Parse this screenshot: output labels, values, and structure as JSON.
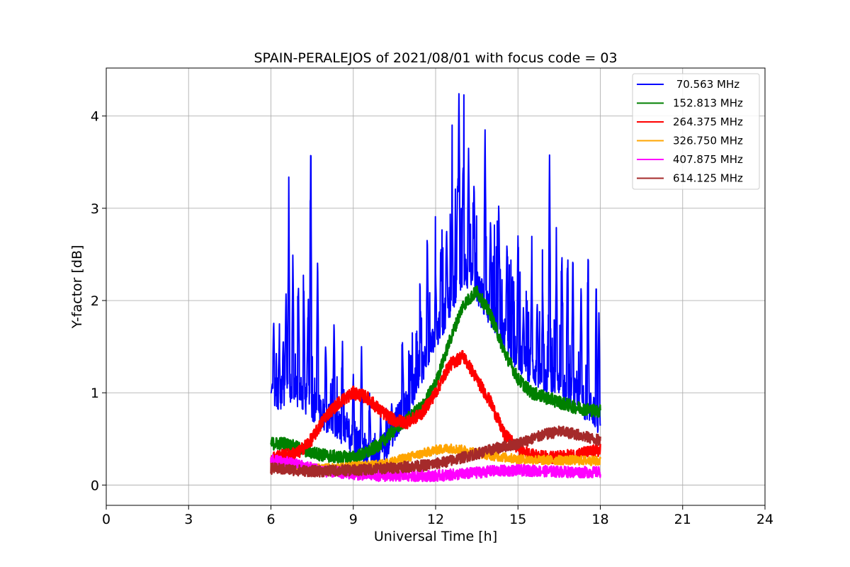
{
  "chart_data": {
    "type": "line",
    "title": "SPAIN-PERALEJOS of 2021/08/01 with focus code = 03",
    "xlabel": "Universal Time [h]",
    "ylabel": "Y-factor [dB]",
    "xlim": [
      0,
      24
    ],
    "ylim": [
      -0.22,
      4.52
    ],
    "xticks": [
      0,
      3,
      6,
      9,
      12,
      15,
      18,
      21,
      24
    ],
    "yticks": [
      0,
      1,
      2,
      3,
      4
    ],
    "grid": true,
    "legend_position": "top-right",
    "series": [
      {
        "name": " 70.563 MHz",
        "color": "#0000ff",
        "x": [
          6.0,
          6.2,
          6.4,
          6.6,
          6.8,
          7.0,
          7.2,
          7.4,
          7.6,
          7.8,
          8.0,
          8.2,
          8.4,
          8.6,
          8.8,
          9.0,
          9.2,
          9.4,
          9.6,
          9.8,
          10.0,
          10.2,
          10.4,
          10.6,
          10.8,
          11.0,
          11.2,
          11.4,
          11.6,
          11.8,
          12.0,
          12.2,
          12.4,
          12.6,
          12.8,
          13.0,
          13.2,
          13.4,
          13.6,
          13.8,
          14.0,
          14.2,
          14.4,
          14.6,
          14.8,
          15.0,
          15.2,
          15.4,
          15.6,
          15.8,
          16.0,
          16.2,
          16.4,
          16.6,
          16.8,
          17.0,
          17.2,
          17.4,
          17.6,
          17.8,
          18.0
        ],
        "y": [
          0.95,
          1.0,
          1.0,
          1.1,
          1.0,
          1.0,
          0.95,
          0.9,
          0.85,
          0.8,
          0.75,
          0.7,
          0.65,
          0.6,
          0.55,
          0.5,
          0.45,
          0.4,
          0.35,
          0.3,
          0.35,
          0.45,
          0.55,
          0.7,
          0.8,
          0.9,
          1.05,
          1.2,
          1.35,
          1.5,
          1.6,
          1.75,
          1.9,
          2.05,
          2.2,
          2.35,
          2.3,
          2.2,
          2.1,
          2.0,
          1.9,
          1.8,
          1.7,
          1.6,
          1.5,
          1.4,
          1.35,
          1.3,
          1.25,
          1.2,
          1.15,
          1.1,
          1.1,
          1.05,
          1.0,
          1.0,
          0.95,
          0.9,
          0.85,
          0.8,
          0.7
        ],
        "peaks": [
          [
            6.05,
            1.1
          ],
          [
            6.1,
            1.8
          ],
          [
            6.3,
            1.5
          ],
          [
            6.45,
            1.6
          ],
          [
            6.55,
            2.1
          ],
          [
            6.65,
            3.0
          ],
          [
            6.8,
            2.5
          ],
          [
            7.0,
            2.2
          ],
          [
            7.2,
            2.1
          ],
          [
            7.35,
            1.9
          ],
          [
            7.45,
            3.65
          ],
          [
            7.7,
            2.5
          ],
          [
            8.0,
            1.5
          ],
          [
            8.3,
            1.8
          ],
          [
            8.6,
            1.4
          ],
          [
            9.0,
            1.2
          ],
          [
            9.3,
            1.5
          ],
          [
            9.6,
            0.9
          ],
          [
            10.0,
            0.7
          ],
          [
            10.4,
            0.9
          ],
          [
            10.8,
            1.4
          ],
          [
            11.1,
            1.3
          ],
          [
            11.45,
            1.9
          ],
          [
            11.7,
            2.6
          ],
          [
            12.0,
            2.3
          ],
          [
            12.2,
            2.6
          ],
          [
            12.4,
            2.8
          ],
          [
            12.6,
            3.1
          ],
          [
            12.8,
            3.3
          ],
          [
            12.85,
            4.3
          ],
          [
            13.0,
            3.5
          ],
          [
            13.2,
            3.65
          ],
          [
            13.4,
            3.3
          ],
          [
            13.8,
            3.85
          ],
          [
            14.0,
            2.9
          ],
          [
            14.3,
            3.1
          ],
          [
            14.6,
            2.65
          ],
          [
            14.8,
            2.3
          ],
          [
            15.0,
            2.7
          ],
          [
            15.2,
            1.9
          ],
          [
            15.5,
            2.4
          ],
          [
            15.7,
            2.0
          ],
          [
            15.9,
            2.1
          ],
          [
            16.15,
            3.65
          ],
          [
            16.4,
            2.55
          ],
          [
            16.6,
            2.55
          ],
          [
            16.8,
            2.35
          ],
          [
            17.0,
            2.5
          ],
          [
            17.3,
            2.2
          ],
          [
            17.55,
            2.3
          ],
          [
            17.85,
            2.25
          ],
          [
            17.95,
            1.9
          ]
        ]
      },
      {
        "name": "152.813 MHz",
        "color": "#008000",
        "x": [
          6.0,
          6.5,
          7.0,
          7.5,
          8.0,
          8.5,
          9.0,
          9.5,
          10.0,
          10.5,
          11.0,
          11.5,
          12.0,
          12.5,
          13.0,
          13.5,
          14.0,
          14.5,
          15.0,
          15.5,
          16.0,
          16.5,
          17.0,
          17.5,
          18.0
        ],
        "y": [
          0.45,
          0.45,
          0.4,
          0.35,
          0.32,
          0.3,
          0.3,
          0.35,
          0.45,
          0.6,
          0.72,
          0.85,
          1.1,
          1.55,
          1.95,
          2.1,
          1.85,
          1.45,
          1.15,
          1.0,
          0.95,
          0.9,
          0.85,
          0.82,
          0.8
        ]
      },
      {
        "name": "264.375 MHz",
        "color": "#ff0000",
        "x": [
          6.0,
          6.5,
          7.0,
          7.5,
          8.0,
          8.5,
          9.0,
          9.5,
          10.0,
          10.5,
          11.0,
          11.5,
          12.0,
          12.5,
          13.0,
          13.5,
          14.0,
          14.5,
          15.0,
          15.5,
          16.0,
          16.5,
          17.0,
          17.5,
          18.0
        ],
        "y": [
          0.3,
          0.32,
          0.35,
          0.5,
          0.75,
          0.9,
          1.0,
          0.95,
          0.8,
          0.7,
          0.68,
          0.78,
          1.0,
          1.3,
          1.4,
          1.15,
          0.9,
          0.55,
          0.4,
          0.32,
          0.3,
          0.3,
          0.32,
          0.35,
          0.38
        ]
      },
      {
        "name": "326.750 MHz",
        "color": "#ffa500",
        "x": [
          6.0,
          7.0,
          8.0,
          9.0,
          10.0,
          11.0,
          12.0,
          12.5,
          13.0,
          14.0,
          15.0,
          16.0,
          17.0,
          18.0
        ],
        "y": [
          0.2,
          0.18,
          0.18,
          0.2,
          0.22,
          0.3,
          0.38,
          0.4,
          0.38,
          0.32,
          0.28,
          0.27,
          0.27,
          0.26
        ]
      },
      {
        "name": "407.875 MHz",
        "color": "#ff00ff",
        "x": [
          6.0,
          7.0,
          8.0,
          9.0,
          10.0,
          11.0,
          12.0,
          13.0,
          14.0,
          15.0,
          16.0,
          17.0,
          18.0
        ],
        "y": [
          0.28,
          0.22,
          0.15,
          0.12,
          0.1,
          0.1,
          0.1,
          0.12,
          0.15,
          0.16,
          0.15,
          0.14,
          0.14
        ]
      },
      {
        "name": "614.125 MHz",
        "color": "#a52a2a",
        "x": [
          6.0,
          6.5,
          7.0,
          7.5,
          8.0,
          8.5,
          9.0,
          9.5,
          10.0,
          10.5,
          11.0,
          11.5,
          12.0,
          12.5,
          13.0,
          13.5,
          14.0,
          14.5,
          15.0,
          15.5,
          16.0,
          16.5,
          17.0,
          17.5,
          18.0
        ],
        "y": [
          0.18,
          0.17,
          0.16,
          0.15,
          0.15,
          0.16,
          0.16,
          0.17,
          0.18,
          0.19,
          0.2,
          0.21,
          0.23,
          0.26,
          0.3,
          0.34,
          0.38,
          0.42,
          0.45,
          0.5,
          0.55,
          0.58,
          0.56,
          0.52,
          0.48
        ]
      }
    ]
  }
}
